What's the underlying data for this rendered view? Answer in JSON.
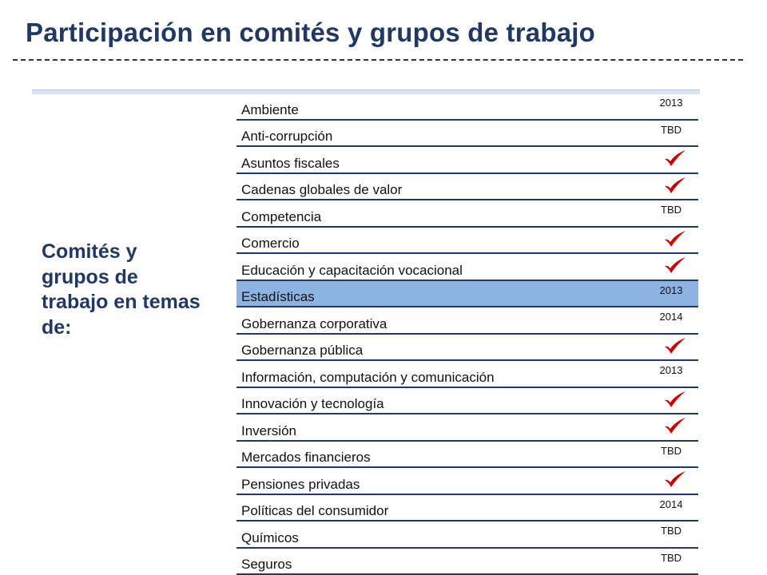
{
  "title": "Participación en comités y grupos de trabajo",
  "side_label": "Comités y grupos de trabajo en temas de:",
  "highlight_color": "#8db3e2",
  "check_color": "#d00000",
  "rows": [
    {
      "label": "Ambiente",
      "status": "2013"
    },
    {
      "label": "Anti-corrupción",
      "status": "TBD"
    },
    {
      "label": "Asuntos fiscales",
      "status": "check-icon"
    },
    {
      "label": "Cadenas globales de valor",
      "status": "check-icon"
    },
    {
      "label": "Competencia",
      "status": "TBD"
    },
    {
      "label": "Comercio",
      "status": "check-icon"
    },
    {
      "label": "Educación y capacitación vocacional",
      "status": "check-icon"
    },
    {
      "label": "Estadísticas",
      "status": "2013",
      "highlight": true
    },
    {
      "label": "Gobernanza corporativa",
      "status": "2014"
    },
    {
      "label": "Gobernanza pública",
      "status": "check-icon"
    },
    {
      "label": "Información, computación y comunicación",
      "status": "2013"
    },
    {
      "label": "Innovación y tecnología",
      "status": "check-icon"
    },
    {
      "label": "Inversión",
      "status": "check-icon"
    },
    {
      "label": "Mercados financieros",
      "status": "TBD"
    },
    {
      "label": "Pensiones privadas",
      "status": "check-icon"
    },
    {
      "label": "Políticas del consumidor",
      "status": "2014"
    },
    {
      "label": "Químicos",
      "status": "TBD"
    },
    {
      "label": "Seguros",
      "status": "TBD"
    }
  ]
}
